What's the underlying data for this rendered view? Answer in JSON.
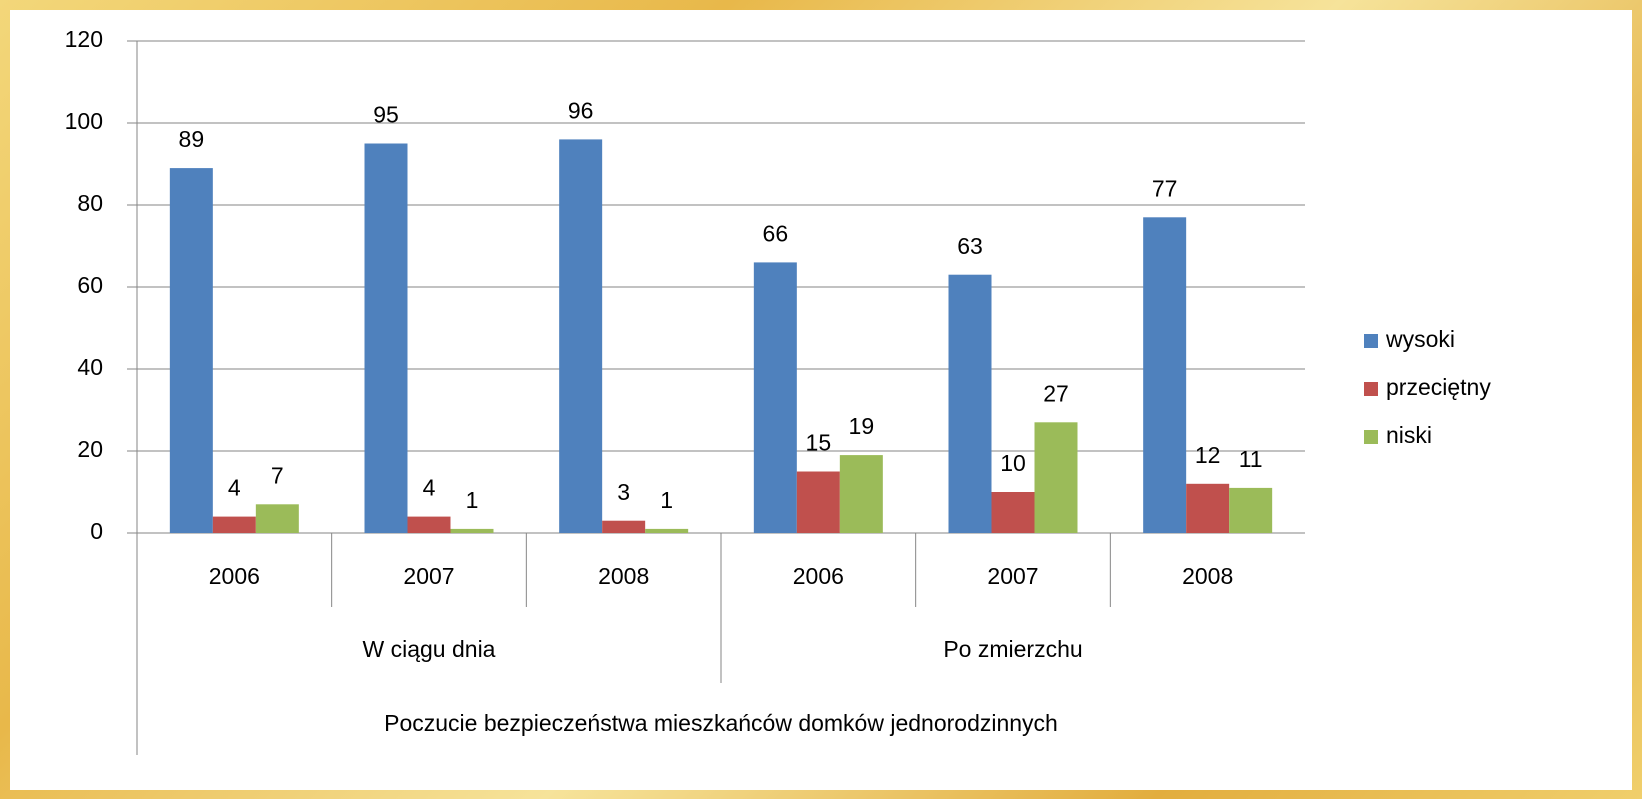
{
  "chart_data": {
    "type": "bar",
    "categories": [
      "2006",
      "2007",
      "2008",
      "2006",
      "2007",
      "2008"
    ],
    "category_groups": [
      "W ciągu dnia",
      "Po zmierzchu"
    ],
    "x_group_title": "Poczucie bezpieczeństwa  mieszkańców domków jednorodzinnych",
    "series": [
      {
        "name": "wysoki",
        "color": "#4f81bd",
        "values": [
          89,
          95,
          96,
          66,
          63,
          77
        ]
      },
      {
        "name": "przeciętny",
        "color": "#c0504d",
        "values": [
          4,
          4,
          3,
          15,
          10,
          12
        ]
      },
      {
        "name": "niski",
        "color": "#9bbb59",
        "values": [
          7,
          1,
          1,
          19,
          27,
          11
        ]
      }
    ],
    "ylim": [
      0,
      120
    ],
    "yticks": [
      0,
      20,
      40,
      60,
      80,
      100,
      120
    ],
    "grid": true,
    "legend": "right"
  }
}
